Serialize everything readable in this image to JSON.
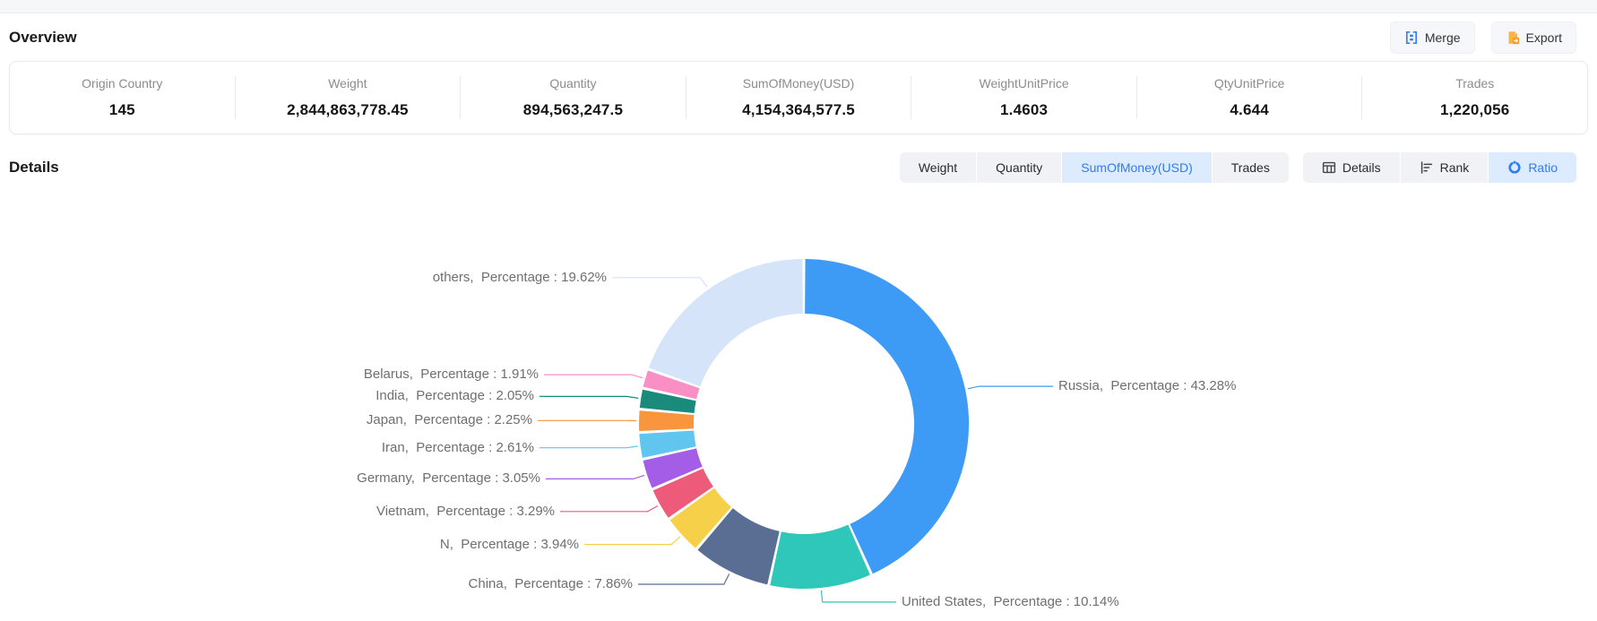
{
  "overview": {
    "title": "Overview",
    "merge_label": "Merge",
    "export_label": "Export",
    "stats": [
      {
        "label": "Origin Country",
        "value": "145"
      },
      {
        "label": "Weight",
        "value": "2,844,863,778.45"
      },
      {
        "label": "Quantity",
        "value": "894,563,247.5"
      },
      {
        "label": "SumOfMoney(USD)",
        "value": "4,154,364,577.5"
      },
      {
        "label": "WeightUnitPrice",
        "value": "1.4603"
      },
      {
        "label": "QtyUnitPrice",
        "value": "4.644"
      },
      {
        "label": "Trades",
        "value": "1,220,056"
      }
    ]
  },
  "details": {
    "title": "Details",
    "metric_tabs": [
      {
        "label": "Weight",
        "active": false
      },
      {
        "label": "Quantity",
        "active": false
      },
      {
        "label": "SumOfMoney(USD)",
        "active": true
      },
      {
        "label": "Trades",
        "active": false
      }
    ],
    "view_tabs": [
      {
        "label": "Details",
        "icon": "table-icon",
        "active": false
      },
      {
        "label": "Rank",
        "icon": "rank-icon",
        "active": false
      },
      {
        "label": "Ratio",
        "icon": "ratio-icon",
        "active": true
      }
    ]
  },
  "colors": {
    "accent_blue": "#2e7cf6",
    "active_tab_bg": "#dcebfd",
    "inactive_tab_bg": "#f0f2f5",
    "merge_icon": "#3b7ff5",
    "export_icon": "#f7a52b",
    "label_text": "#6f6f6f"
  },
  "chart_data": {
    "type": "pie",
    "subtype": "donut",
    "title": "Origin country ratio by SumOfMoney(USD)",
    "legend_position": "none",
    "unit": "percent",
    "series": [
      {
        "name": "Russia",
        "value": 43.28,
        "label": "Russia,  Percentage : 43.28%",
        "color": "#3e9bf5"
      },
      {
        "name": "United States",
        "value": 10.14,
        "label": "United States,  Percentage : 10.14%",
        "color": "#2fc7b9"
      },
      {
        "name": "China",
        "value": 7.86,
        "label": "China,  Percentage : 7.86%",
        "color": "#5a6d92"
      },
      {
        "name": "N",
        "value": 3.94,
        "label": "N,  Percentage : 3.94%",
        "color": "#f7d04a"
      },
      {
        "name": "Vietnam",
        "value": 3.29,
        "label": "Vietnam,  Percentage : 3.29%",
        "color": "#ee5a79"
      },
      {
        "name": "Germany",
        "value": 3.05,
        "label": "Germany,  Percentage : 3.05%",
        "color": "#a35de6"
      },
      {
        "name": "Iran",
        "value": 2.61,
        "label": "Iran,  Percentage : 2.61%",
        "color": "#60c5ef"
      },
      {
        "name": "Japan",
        "value": 2.25,
        "label": "Japan,  Percentage : 2.25%",
        "color": "#f8953d"
      },
      {
        "name": "India",
        "value": 2.05,
        "label": "India,  Percentage : 2.05%",
        "color": "#198a7c"
      },
      {
        "name": "Belarus",
        "value": 1.91,
        "label": "Belarus,  Percentage : 1.91%",
        "color": "#f98fc4"
      },
      {
        "name": "others",
        "value": 19.62,
        "label": "others,  Percentage : 19.62%",
        "color": "#d5e4f8"
      }
    ]
  }
}
